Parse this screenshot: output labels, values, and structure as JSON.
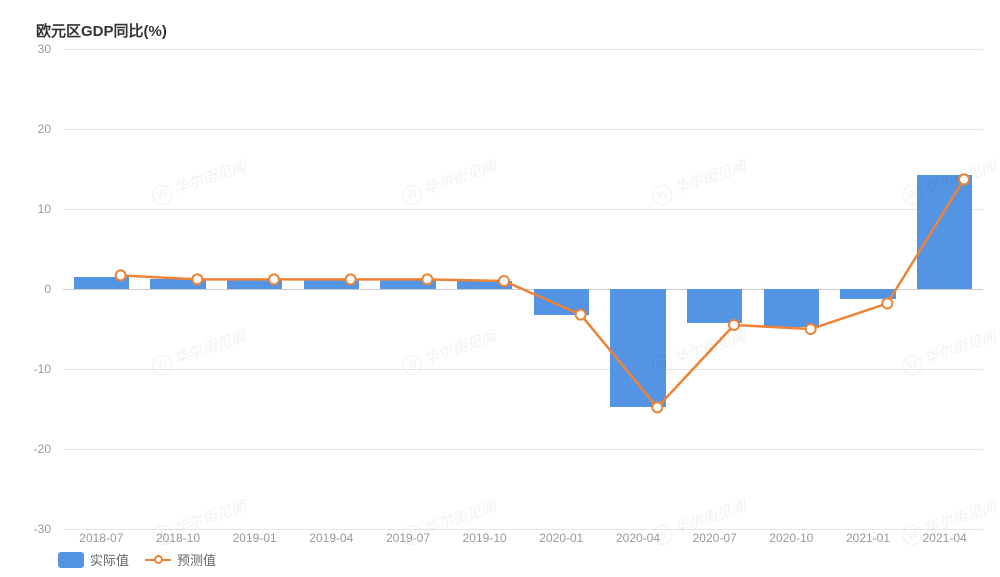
{
  "title": "欧元区GDP同比(%)",
  "chart": {
    "type": "bar+line",
    "background_color": "#ffffff",
    "grid_color": "#e6e6e6",
    "axis_label_color": "#999999",
    "axis_label_fontsize": 12,
    "title_fontsize": 15,
    "title_color": "#333333",
    "ylim": [
      -30,
      30
    ],
    "yticks": [
      -30,
      -20,
      -10,
      0,
      10,
      20,
      30
    ],
    "categories": [
      "2018-07",
      "2018-10",
      "2019-01",
      "2019-04",
      "2019-07",
      "2019-10",
      "2020-01",
      "2020-04",
      "2020-07",
      "2020-10",
      "2021-01",
      "2021-04"
    ],
    "series": {
      "actual": {
        "label": "实际值",
        "type": "bar",
        "color": "#5394e4",
        "bar_width_ratio": 0.72,
        "values": [
          1.5,
          1.2,
          1.2,
          1.2,
          1.2,
          1.0,
          -3.2,
          -14.8,
          -4.3,
          -4.8,
          -1.2,
          14.2
        ]
      },
      "forecast": {
        "label": "预测值",
        "type": "line",
        "color": "#ee8336",
        "line_width": 2.5,
        "marker_style": "circle",
        "marker_size": 5,
        "marker_fill": "#ffffff",
        "values": [
          1.7,
          1.2,
          1.2,
          1.2,
          1.2,
          1.0,
          -3.2,
          -14.8,
          -4.5,
          -5.0,
          -1.8,
          13.7
        ]
      }
    }
  },
  "legend": {
    "items": [
      {
        "key": "actual",
        "label": "实际值"
      },
      {
        "key": "forecast",
        "label": "预测值"
      }
    ]
  },
  "watermark_text": "华尔街见闻"
}
